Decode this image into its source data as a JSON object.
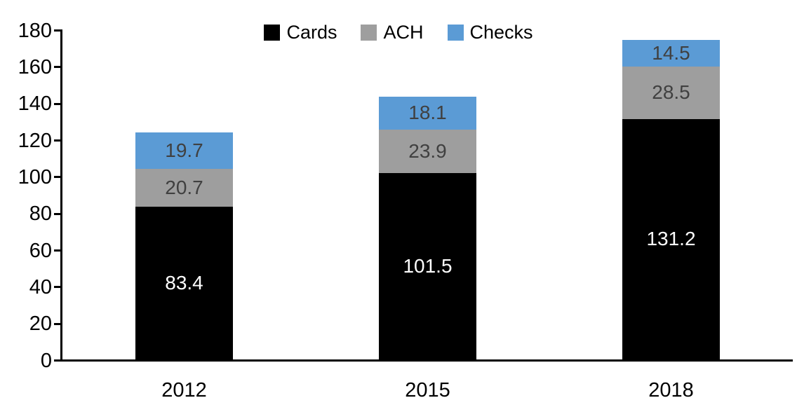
{
  "chart_data": {
    "type": "bar",
    "stacked": true,
    "title": "",
    "categories": [
      "2012",
      "2015",
      "2018"
    ],
    "series": [
      {
        "name": "Cards",
        "color": "#000000",
        "label_color": "#ffffff",
        "values": [
          83.4,
          101.5,
          131.2
        ]
      },
      {
        "name": "ACH",
        "color": "#9e9e9e",
        "label_color": "#404040",
        "values": [
          20.7,
          23.9,
          28.5
        ]
      },
      {
        "name": "Checks",
        "color": "#5b9bd5",
        "label_color": "#404040",
        "values": [
          19.7,
          18.1,
          14.5
        ]
      }
    ],
    "totals": [
      123.8,
      143.5,
      174.2
    ],
    "xlabel": "",
    "ylabel": "",
    "ylim": [
      0,
      180
    ],
    "ytick_step": 20,
    "y_tick_labels": [
      "0",
      "20",
      "40",
      "60",
      "80",
      "100",
      "120",
      "140",
      "160",
      "180"
    ],
    "legend_position": "top",
    "legend_entries": [
      "Cards",
      "ACH",
      "Checks"
    ],
    "grid": false,
    "axis_color": "#000000",
    "text_color": "#000000",
    "value_label_decimals": 1
  }
}
